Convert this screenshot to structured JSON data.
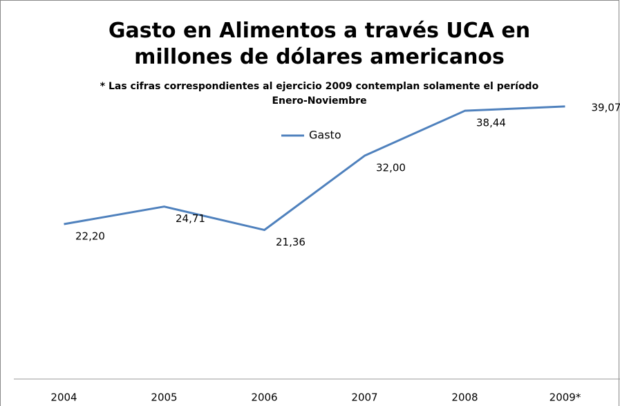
{
  "chart_data": {
    "type": "line",
    "title": "Gasto en Alimentos a través UCA en millones de dólares americanos",
    "subtitle": "* Las cifras correspondientes al ejercicio 2009 contemplan solamente el período Enero-Noviembre",
    "categories": [
      "2004",
      "2005",
      "2006",
      "2007",
      "2008",
      "2009*"
    ],
    "series": [
      {
        "name": "Gasto",
        "color": "#4f81bd",
        "values": [
          22.2,
          24.71,
          21.36,
          32.0,
          38.44,
          39.07
        ],
        "value_labels": [
          "22,20",
          "24,71",
          "21,36",
          "32,00",
          "38,44",
          "39,07"
        ]
      }
    ],
    "ylim": [
      0,
      45
    ],
    "legend": "top"
  }
}
